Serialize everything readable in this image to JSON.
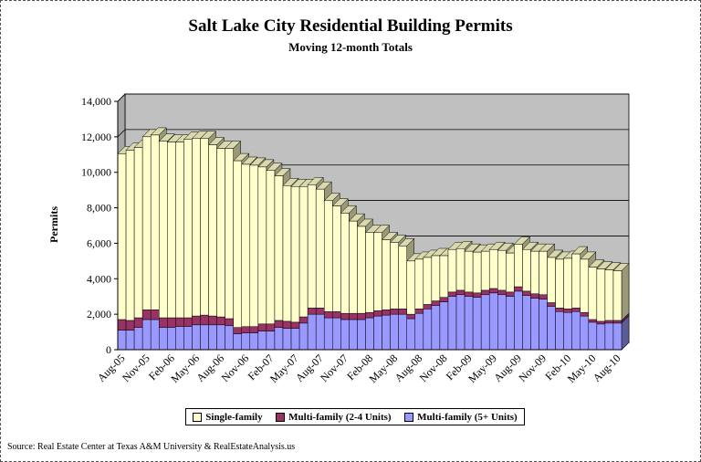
{
  "title": "Salt Lake City Residential Building Permits",
  "subtitle": "Moving 12-month Totals",
  "source": "Source: Real Estate Center at Texas A&M University & RealEstateAnalysis.us",
  "colors": {
    "single": "#FFFFCC",
    "multi24": "#993366",
    "multi5": "#9999FF",
    "plot_bg": "#C0C0C0",
    "wall": "#A6A6A6"
  },
  "chart_data": {
    "type": "bar",
    "stacked": true,
    "title": "Salt Lake City Residential Building Permits",
    "subtitle": "Moving 12-month Totals",
    "ylabel": "Permits",
    "xlabel": "",
    "ylim": [
      0,
      14000
    ],
    "yticks": [
      "0",
      "2,000",
      "4,000",
      "6,000",
      "8,000",
      "10,000",
      "12,000",
      "14,000"
    ],
    "ytick_values": [
      0,
      2000,
      4000,
      6000,
      8000,
      10000,
      12000,
      14000
    ],
    "grid": true,
    "legend_position": "bottom",
    "x_start": "2005-08",
    "xtick_labels": [
      "Aug-05",
      "Nov-05",
      "Feb-06",
      "May-06",
      "Aug-06",
      "Nov-06",
      "Feb-07",
      "May-07",
      "Aug-07",
      "Nov-07",
      "Feb-08",
      "May-08",
      "Aug-08",
      "Nov-08",
      "Feb-09",
      "May-09",
      "Aug-09",
      "Nov-09",
      "Feb-10",
      "May-10",
      "Aug-10"
    ],
    "series": [
      {
        "name": "Multi-family (5+ Units)",
        "color": "#9999FF",
        "values": [
          1100,
          1100,
          1250,
          1700,
          1700,
          1250,
          1250,
          1300,
          1300,
          1400,
          1400,
          1400,
          1400,
          1350,
          900,
          950,
          950,
          1050,
          1050,
          1250,
          1200,
          1200,
          1500,
          2000,
          2000,
          1800,
          1800,
          1700,
          1700,
          1700,
          1800,
          1900,
          1950,
          2000,
          2000,
          1750,
          2050,
          2300,
          2500,
          2700,
          3000,
          3100,
          3000,
          2950,
          3100,
          3200,
          3100,
          3000,
          3300,
          3050,
          2900,
          2850,
          2450,
          2150,
          2100,
          2150,
          1900,
          1550,
          1450,
          1500,
          1500
        ]
      },
      {
        "name": "Multi-family (2-4 Units)",
        "color": "#993366",
        "values": [
          600,
          550,
          550,
          550,
          550,
          550,
          550,
          500,
          500,
          500,
          550,
          500,
          450,
          400,
          350,
          350,
          350,
          400,
          400,
          400,
          400,
          350,
          350,
          350,
          350,
          350,
          350,
          350,
          350,
          350,
          300,
          300,
          300,
          300,
          300,
          250,
          250,
          250,
          250,
          250,
          250,
          250,
          250,
          250,
          250,
          250,
          250,
          250,
          250,
          250,
          250,
          250,
          200,
          200,
          200,
          200,
          200,
          150,
          150,
          150,
          150
        ]
      },
      {
        "name": "Single-family",
        "color": "#FFFFCC",
        "values": [
          9350,
          9600,
          9600,
          9750,
          9850,
          9950,
          9900,
          9900,
          10050,
          10000,
          9950,
          9650,
          9500,
          9600,
          9400,
          9150,
          9100,
          8850,
          8650,
          8150,
          7650,
          7650,
          7350,
          6950,
          6700,
          6250,
          5950,
          5650,
          5200,
          4900,
          4500,
          4400,
          3950,
          3750,
          3550,
          3000,
          2800,
          2650,
          2550,
          2350,
          2400,
          2350,
          2300,
          2300,
          2200,
          2200,
          2250,
          2200,
          2400,
          2350,
          2400,
          2450,
          2550,
          2750,
          2850,
          3050,
          3000,
          2950,
          2950,
          2850,
          2800
        ]
      }
    ]
  }
}
